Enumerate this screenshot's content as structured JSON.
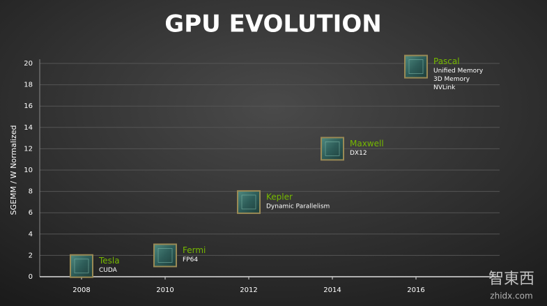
{
  "chart_data": {
    "type": "scatter",
    "title": "GPU EVOLUTION",
    "y_label": "SGEMM / W Normalized",
    "x": [
      2008,
      2010,
      2012,
      2014,
      2016
    ],
    "values": [
      1,
      2,
      7,
      12,
      19.7
    ],
    "names": [
      "Tesla",
      "Fermi",
      "Kepler",
      "Maxwell",
      "Pascal"
    ],
    "features": [
      [
        "CUDA"
      ],
      [
        "FP64"
      ],
      [
        "Dynamic Parallelism"
      ],
      [
        "DX12"
      ],
      [
        "Unified Memory",
        "3D Memory",
        "NVLink"
      ]
    ],
    "color": "#76b900",
    "xlim": [
      2007,
      2018
    ],
    "xticks": [
      2008,
      2010,
      2012,
      2014,
      2016
    ],
    "ylim": [
      0,
      20
    ],
    "yticks": [
      0,
      2,
      4,
      6,
      8,
      10,
      12,
      14,
      16,
      18,
      20
    ],
    "grid": true,
    "watermark": "智東西",
    "watermark_url": "zhidx.com"
  }
}
